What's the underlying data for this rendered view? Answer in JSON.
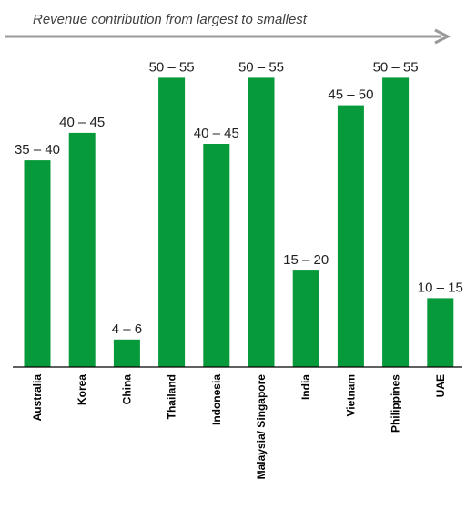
{
  "colors": {
    "bar": "#079a3a",
    "arrow": "#9a9a9a",
    "axis": "#000000"
  },
  "chart_data": {
    "type": "bar",
    "subtitle": "Revenue contribution from largest to smallest",
    "categories": [
      "Australia",
      "Korea",
      "China",
      "Thailand",
      "Indonesia",
      "Malaysia/ Singapore",
      "India",
      "Vietnam",
      "Philippines",
      "UAE"
    ],
    "values": [
      37.5,
      42.5,
      5,
      52.5,
      40.5,
      52.5,
      17.5,
      47.5,
      52.5,
      12.5
    ],
    "value_labels": [
      "35 – 40",
      "40 – 45",
      "4 – 6",
      "50 – 55",
      "40 – 45",
      "50 – 55",
      "15 – 20",
      "45 – 50",
      "50 – 55",
      "10 – 15"
    ],
    "ylim": [
      0,
      60
    ],
    "grid": false,
    "legend": "none"
  }
}
